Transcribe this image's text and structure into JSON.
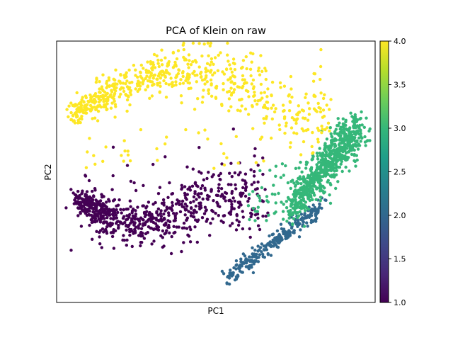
{
  "chart_data": {
    "type": "scatter",
    "title": "PCA of Klein on raw",
    "xlabel": "PC1",
    "ylabel": "PC2",
    "xticks": "none",
    "yticks": "none",
    "grid": false,
    "legend": "none",
    "colorbar": {
      "cmap": "viridis",
      "min": 1.0,
      "max": 4.0,
      "tick_labels": [
        "1.0",
        "1.5",
        "2.0",
        "2.5",
        "3.0",
        "3.5",
        "4.0"
      ],
      "tick_values": [
        1.0,
        1.5,
        2.0,
        2.5,
        3.0,
        3.5,
        4.0
      ],
      "stops": [
        "#440154",
        "#482878",
        "#3e4989",
        "#31688e",
        "#26828e",
        "#1f9e89",
        "#35b779",
        "#6ece58",
        "#b5de2b",
        "#fde725"
      ]
    },
    "clusters": [
      {
        "value": 1.0,
        "color": "#440154",
        "shape": "lower-left arc (dense at left, sparse to right)"
      },
      {
        "value": 2.0,
        "color": "#31688e",
        "shape": "diagonal band lower-right"
      },
      {
        "value": 3.0,
        "color": "#35b779",
        "shape": "dense diagonal band right side"
      },
      {
        "value": 4.0,
        "color": "#fde725",
        "shape": "upper arc (dense at left)"
      }
    ]
  }
}
